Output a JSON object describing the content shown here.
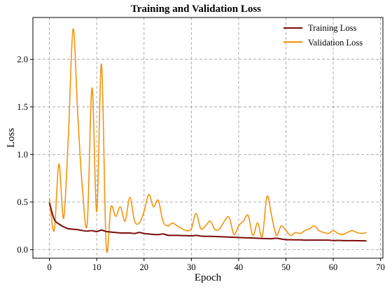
{
  "chart_data": {
    "type": "line",
    "title": "Training and Validation Loss",
    "xlabel": "Epoch",
    "ylabel": "Loss",
    "xlim": [
      -3.5,
      70.5
    ],
    "ylim": [
      -0.09,
      2.44
    ],
    "xticks": [
      0,
      10,
      20,
      30,
      40,
      50,
      60,
      70
    ],
    "yticks": [
      0.0,
      0.5,
      1.0,
      1.5,
      2.0
    ],
    "ytick_labels": [
      "0.0",
      "0.5",
      "1.0",
      "1.5",
      "2.0"
    ],
    "grid": true,
    "legend_position": "top-right",
    "series": [
      {
        "name": "Training Loss",
        "color": "#7b0a0a",
        "x": [
          0,
          1,
          2,
          3,
          4,
          5,
          6,
          7,
          8,
          9,
          10,
          11,
          12,
          13,
          14,
          15,
          16,
          17,
          18,
          19,
          20,
          21,
          22,
          23,
          24,
          25,
          26,
          27,
          28,
          29,
          30,
          31,
          32,
          33,
          34,
          35,
          36,
          37,
          38,
          39,
          40,
          41,
          42,
          43,
          44,
          45,
          46,
          47,
          48,
          49,
          50,
          51,
          52,
          53,
          54,
          55,
          56,
          57,
          58,
          59,
          60,
          61,
          62,
          63,
          64,
          65,
          66,
          67
        ],
        "values": [
          0.49,
          0.32,
          0.27,
          0.24,
          0.22,
          0.215,
          0.21,
          0.2,
          0.195,
          0.2,
          0.19,
          0.205,
          0.19,
          0.185,
          0.18,
          0.175,
          0.175,
          0.175,
          0.17,
          0.18,
          0.17,
          0.165,
          0.16,
          0.158,
          0.165,
          0.152,
          0.15,
          0.15,
          0.148,
          0.147,
          0.145,
          0.15,
          0.143,
          0.14,
          0.14,
          0.138,
          0.136,
          0.134,
          0.132,
          0.13,
          0.128,
          0.125,
          0.124,
          0.122,
          0.12,
          0.118,
          0.116,
          0.115,
          0.12,
          0.112,
          0.105,
          0.104,
          0.103,
          0.103,
          0.1,
          0.1,
          0.1,
          0.1,
          0.1,
          0.1,
          0.096,
          0.098,
          0.096,
          0.095,
          0.095,
          0.094,
          0.093,
          0.092
        ]
      },
      {
        "name": "Validation Loss",
        "color": "#f5930a",
        "x": [
          0,
          1,
          2,
          3,
          4,
          5,
          6,
          7,
          8,
          9,
          10,
          11,
          12,
          13,
          14,
          15,
          16,
          17,
          18,
          19,
          20,
          21,
          22,
          23,
          24,
          25,
          26,
          27,
          28,
          29,
          30,
          31,
          32,
          33,
          34,
          35,
          36,
          37,
          38,
          39,
          40,
          41,
          42,
          43,
          44,
          45,
          46,
          47,
          48,
          49,
          50,
          51,
          52,
          53,
          54,
          55,
          56,
          57,
          58,
          59,
          60,
          61,
          62,
          63,
          64,
          65,
          66,
          67
        ],
        "values": [
          0.54,
          0.2,
          0.9,
          0.33,
          1.2,
          2.32,
          1.4,
          0.62,
          0.28,
          1.7,
          0.4,
          1.95,
          0.03,
          0.45,
          0.35,
          0.45,
          0.3,
          0.55,
          0.3,
          0.28,
          0.4,
          0.58,
          0.45,
          0.52,
          0.3,
          0.25,
          0.28,
          0.25,
          0.22,
          0.2,
          0.22,
          0.38,
          0.22,
          0.25,
          0.3,
          0.21,
          0.22,
          0.3,
          0.34,
          0.16,
          0.25,
          0.3,
          0.36,
          0.15,
          0.28,
          0.14,
          0.56,
          0.35,
          0.15,
          0.25,
          0.2,
          0.15,
          0.18,
          0.17,
          0.2,
          0.22,
          0.25,
          0.2,
          0.18,
          0.17,
          0.2,
          0.17,
          0.16,
          0.18,
          0.2,
          0.18,
          0.17,
          0.18
        ]
      }
    ]
  }
}
